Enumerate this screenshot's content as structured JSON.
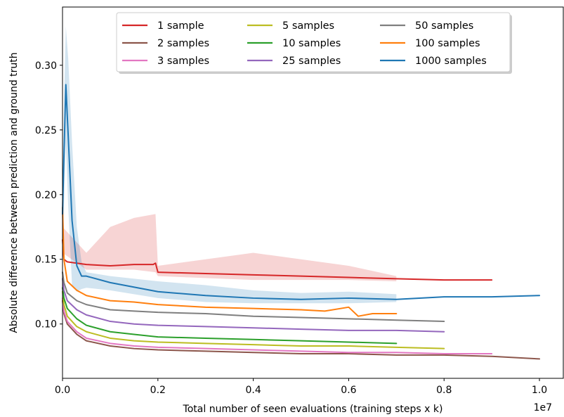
{
  "chart_data": {
    "type": "line",
    "title": "",
    "xlabel": "Total number of seen evaluations (training steps x k)",
    "ylabel": "Absolute difference between prediction and ground truth",
    "x_offset_label": "1e7",
    "xlim": [
      0,
      1.05
    ],
    "ylim": [
      0.058,
      0.345
    ],
    "grid": false,
    "legend_placement": "upper center",
    "xticks": [
      0.0,
      0.2,
      0.4,
      0.6,
      0.8,
      1.0
    ],
    "xtick_labels": [
      "0.0",
      "0.2",
      "0.4",
      "0.6",
      "0.8",
      "1.0"
    ],
    "yticks": [
      0.1,
      0.15,
      0.2,
      0.25,
      0.3
    ],
    "ytick_labels": [
      "0.10",
      "0.15",
      "0.20",
      "0.25",
      "0.30"
    ],
    "series": [
      {
        "name": "1 sample",
        "color": "#d62728",
        "x": [
          0.0,
          0.003,
          0.01,
          0.05,
          0.1,
          0.15,
          0.19,
          0.195,
          0.2,
          0.3,
          0.4,
          0.5,
          0.6,
          0.7,
          0.8,
          0.9
        ],
        "y": [
          0.165,
          0.15,
          0.148,
          0.146,
          0.145,
          0.146,
          0.146,
          0.147,
          0.14,
          0.139,
          0.138,
          0.137,
          0.136,
          0.135,
          0.134,
          0.134
        ],
        "band_x": [
          0.0,
          0.05,
          0.1,
          0.15,
          0.195,
          0.2,
          0.4,
          0.6,
          0.7
        ],
        "band_upper": [
          0.175,
          0.155,
          0.175,
          0.182,
          0.185,
          0.145,
          0.155,
          0.145,
          0.137
        ],
        "band_lower": [
          0.155,
          0.142,
          0.142,
          0.142,
          0.14,
          0.137,
          0.134,
          0.134,
          0.133
        ]
      },
      {
        "name": "2 samples",
        "color": "#8c564b",
        "x": [
          0.0,
          0.003,
          0.01,
          0.03,
          0.05,
          0.1,
          0.15,
          0.2,
          0.3,
          0.4,
          0.5,
          0.6,
          0.7,
          0.8,
          0.9,
          1.0
        ],
        "y": [
          0.118,
          0.108,
          0.1,
          0.092,
          0.087,
          0.083,
          0.081,
          0.08,
          0.079,
          0.078,
          0.077,
          0.077,
          0.076,
          0.076,
          0.075,
          0.073
        ]
      },
      {
        "name": "3 samples",
        "color": "#e377c2",
        "x": [
          0.0,
          0.003,
          0.01,
          0.03,
          0.05,
          0.1,
          0.15,
          0.2,
          0.3,
          0.4,
          0.5,
          0.6,
          0.7,
          0.8,
          0.9
        ],
        "y": [
          0.12,
          0.11,
          0.102,
          0.094,
          0.089,
          0.085,
          0.083,
          0.082,
          0.081,
          0.08,
          0.079,
          0.078,
          0.078,
          0.077,
          0.077
        ]
      },
      {
        "name": "5 samples",
        "color": "#bcbd22",
        "x": [
          0.0,
          0.003,
          0.01,
          0.03,
          0.05,
          0.1,
          0.15,
          0.2,
          0.3,
          0.4,
          0.5,
          0.6,
          0.7,
          0.8
        ],
        "y": [
          0.125,
          0.115,
          0.106,
          0.098,
          0.094,
          0.089,
          0.087,
          0.086,
          0.085,
          0.084,
          0.083,
          0.083,
          0.082,
          0.081
        ]
      },
      {
        "name": "10 samples",
        "color": "#2ca02c",
        "x": [
          0.0,
          0.003,
          0.01,
          0.03,
          0.05,
          0.1,
          0.15,
          0.2,
          0.3,
          0.4,
          0.5,
          0.6,
          0.7
        ],
        "y": [
          0.128,
          0.12,
          0.112,
          0.104,
          0.099,
          0.094,
          0.092,
          0.09,
          0.089,
          0.088,
          0.087,
          0.086,
          0.085
        ]
      },
      {
        "name": "25 samples",
        "color": "#9467bd",
        "x": [
          0.0,
          0.003,
          0.01,
          0.03,
          0.05,
          0.1,
          0.15,
          0.2,
          0.3,
          0.4,
          0.5,
          0.6,
          0.7,
          0.8
        ],
        "y": [
          0.135,
          0.126,
          0.118,
          0.111,
          0.107,
          0.102,
          0.1,
          0.099,
          0.098,
          0.097,
          0.096,
          0.095,
          0.095,
          0.094
        ]
      },
      {
        "name": "50 samples",
        "color": "#7f7f7f",
        "x": [
          0.0,
          0.003,
          0.01,
          0.03,
          0.05,
          0.1,
          0.15,
          0.2,
          0.3,
          0.4,
          0.5,
          0.6,
          0.7,
          0.8
        ],
        "y": [
          0.14,
          0.132,
          0.124,
          0.118,
          0.115,
          0.111,
          0.11,
          0.109,
          0.108,
          0.106,
          0.105,
          0.104,
          0.103,
          0.102
        ]
      },
      {
        "name": "100 samples",
        "color": "#ff7f0e",
        "x": [
          0.0,
          0.003,
          0.01,
          0.03,
          0.05,
          0.1,
          0.15,
          0.2,
          0.25,
          0.3,
          0.4,
          0.5,
          0.55,
          0.6,
          0.62,
          0.65,
          0.7
        ],
        "y": [
          0.19,
          0.15,
          0.133,
          0.126,
          0.122,
          0.118,
          0.117,
          0.115,
          0.114,
          0.113,
          0.112,
          0.111,
          0.11,
          0.113,
          0.106,
          0.108,
          0.108
        ]
      },
      {
        "name": "1000 samples",
        "color": "#1f77b4",
        "x": [
          0.0,
          0.003,
          0.007,
          0.012,
          0.02,
          0.03,
          0.04,
          0.05,
          0.1,
          0.2,
          0.3,
          0.4,
          0.5,
          0.6,
          0.7,
          0.8,
          0.9,
          1.0
        ],
        "y": [
          0.185,
          0.23,
          0.285,
          0.245,
          0.18,
          0.145,
          0.137,
          0.137,
          0.132,
          0.125,
          0.122,
          0.12,
          0.119,
          0.12,
          0.119,
          0.121,
          0.121,
          0.122
        ],
        "band_x": [
          0.0,
          0.003,
          0.007,
          0.012,
          0.02,
          0.03,
          0.04,
          0.05,
          0.1,
          0.2,
          0.3,
          0.4,
          0.5,
          0.6,
          0.7
        ],
        "band_upper": [
          0.2,
          0.27,
          0.33,
          0.305,
          0.24,
          0.175,
          0.148,
          0.14,
          0.137,
          0.133,
          0.13,
          0.126,
          0.124,
          0.125,
          0.123
        ],
        "band_lower": [
          0.17,
          0.19,
          0.24,
          0.19,
          0.13,
          0.125,
          0.127,
          0.128,
          0.126,
          0.12,
          0.117,
          0.116,
          0.116,
          0.116,
          0.117
        ]
      }
    ]
  }
}
